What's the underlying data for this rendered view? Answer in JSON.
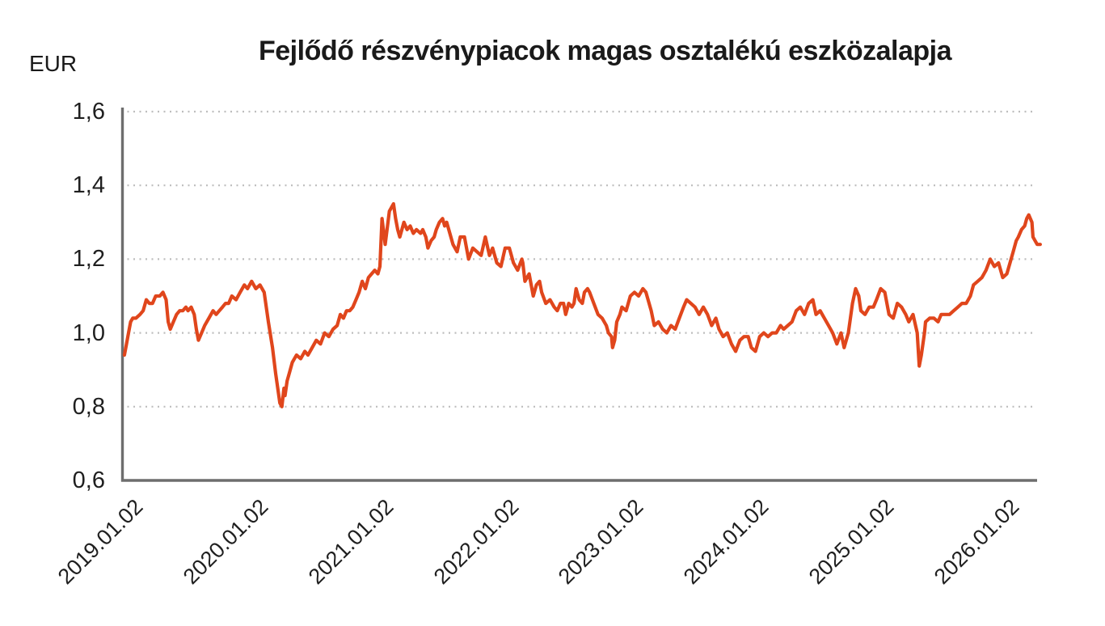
{
  "colors": {
    "series_line": "#e0461c",
    "axis": "#6e6e6e",
    "grid": "#bdbdbd",
    "text": "#1f1f1f",
    "background": "#ffffff"
  },
  "chart_data": {
    "type": "line",
    "title": "Fejlődő részvénypiacok magas osztalékú eszközalapja",
    "y_axis": {
      "label": "EUR",
      "min": 0.6,
      "max": 1.6,
      "tick_step": 0.2,
      "decimal_separator": ",",
      "ticks": [
        {
          "label": "1,6",
          "value": 1.6,
          "gridline": true
        },
        {
          "label": "1,4",
          "value": 1.4,
          "gridline": true
        },
        {
          "label": "1,2",
          "value": 1.2,
          "gridline": true
        },
        {
          "label": "1,0",
          "value": 1.0,
          "gridline": true
        },
        {
          "label": "0,8",
          "value": 0.8,
          "gridline": true
        },
        {
          "label": "0,6",
          "value": 0.6,
          "gridline": false
        }
      ]
    },
    "x_axis": {
      "tick_interval_months": 12,
      "tick_labels": [
        "2019.01.02",
        "2020.01.02",
        "2021.01.02",
        "2022.01.02",
        "2023.01.02",
        "2024.01.02",
        "2025.01.02",
        "2026.01.02"
      ]
    },
    "grid": {
      "style": "dotted",
      "orientation": "horizontal"
    },
    "legend": {
      "visible": false
    },
    "series": [
      {
        "name": "Fejlődő részvénypiacok magas osztalékú eszközalapja",
        "unit": "EUR",
        "points_month_value": [
          [
            0.3,
            0.94
          ],
          [
            0.5,
            0.97
          ],
          [
            0.7,
            1.0
          ],
          [
            0.9,
            1.03
          ],
          [
            1.1,
            1.04
          ],
          [
            1.4,
            1.04
          ],
          [
            1.8,
            1.05
          ],
          [
            2.1,
            1.06
          ],
          [
            2.4,
            1.09
          ],
          [
            2.7,
            1.08
          ],
          [
            3.0,
            1.08
          ],
          [
            3.3,
            1.1
          ],
          [
            3.7,
            1.1
          ],
          [
            4.0,
            1.11
          ],
          [
            4.3,
            1.09
          ],
          [
            4.5,
            1.03
          ],
          [
            4.7,
            1.01
          ],
          [
            5.0,
            1.03
          ],
          [
            5.3,
            1.05
          ],
          [
            5.6,
            1.06
          ],
          [
            5.9,
            1.06
          ],
          [
            6.2,
            1.07
          ],
          [
            6.4,
            1.06
          ],
          [
            6.7,
            1.07
          ],
          [
            7.0,
            1.05
          ],
          [
            7.2,
            1.01
          ],
          [
            7.4,
            0.98
          ],
          [
            7.7,
            1.0
          ],
          [
            8.0,
            1.02
          ],
          [
            8.4,
            1.04
          ],
          [
            8.8,
            1.06
          ],
          [
            9.1,
            1.05
          ],
          [
            9.4,
            1.06
          ],
          [
            9.7,
            1.07
          ],
          [
            10.0,
            1.08
          ],
          [
            10.3,
            1.08
          ],
          [
            10.6,
            1.1
          ],
          [
            11.0,
            1.09
          ],
          [
            11.4,
            1.11
          ],
          [
            11.8,
            1.13
          ],
          [
            12.1,
            1.12
          ],
          [
            12.5,
            1.14
          ],
          [
            12.9,
            1.12
          ],
          [
            13.3,
            1.13
          ],
          [
            13.7,
            1.11
          ],
          [
            14.1,
            1.03
          ],
          [
            14.5,
            0.96
          ],
          [
            14.8,
            0.89
          ],
          [
            15.2,
            0.81
          ],
          [
            15.4,
            0.8
          ],
          [
            15.6,
            0.85
          ],
          [
            15.7,
            0.83
          ],
          [
            15.9,
            0.87
          ],
          [
            16.1,
            0.89
          ],
          [
            16.4,
            0.92
          ],
          [
            16.8,
            0.94
          ],
          [
            17.2,
            0.93
          ],
          [
            17.6,
            0.95
          ],
          [
            17.9,
            0.94
          ],
          [
            18.3,
            0.96
          ],
          [
            18.7,
            0.98
          ],
          [
            19.1,
            0.97
          ],
          [
            19.5,
            1.0
          ],
          [
            19.9,
            0.99
          ],
          [
            20.3,
            1.01
          ],
          [
            20.7,
            1.02
          ],
          [
            21.0,
            1.05
          ],
          [
            21.3,
            1.04
          ],
          [
            21.6,
            1.06
          ],
          [
            21.9,
            1.06
          ],
          [
            22.2,
            1.07
          ],
          [
            22.5,
            1.09
          ],
          [
            22.8,
            1.11
          ],
          [
            23.1,
            1.14
          ],
          [
            23.4,
            1.12
          ],
          [
            23.7,
            1.15
          ],
          [
            24.0,
            1.16
          ],
          [
            24.3,
            1.17
          ],
          [
            24.6,
            1.16
          ],
          [
            24.8,
            1.18
          ],
          [
            25.0,
            1.31
          ],
          [
            25.3,
            1.24
          ],
          [
            25.7,
            1.33
          ],
          [
            26.1,
            1.35
          ],
          [
            26.3,
            1.31
          ],
          [
            26.5,
            1.28
          ],
          [
            26.7,
            1.26
          ],
          [
            27.1,
            1.3
          ],
          [
            27.4,
            1.28
          ],
          [
            27.7,
            1.29
          ],
          [
            28.0,
            1.27
          ],
          [
            28.3,
            1.28
          ],
          [
            28.7,
            1.27
          ],
          [
            28.9,
            1.28
          ],
          [
            29.2,
            1.26
          ],
          [
            29.4,
            1.23
          ],
          [
            29.7,
            1.25
          ],
          [
            30.0,
            1.26
          ],
          [
            30.2,
            1.28
          ],
          [
            30.5,
            1.3
          ],
          [
            30.8,
            1.31
          ],
          [
            31.0,
            1.29
          ],
          [
            31.2,
            1.3
          ],
          [
            31.5,
            1.27
          ],
          [
            31.8,
            1.24
          ],
          [
            32.2,
            1.22
          ],
          [
            32.5,
            1.26
          ],
          [
            32.9,
            1.26
          ],
          [
            33.3,
            1.2
          ],
          [
            33.7,
            1.23
          ],
          [
            34.1,
            1.22
          ],
          [
            34.5,
            1.21
          ],
          [
            34.9,
            1.26
          ],
          [
            35.3,
            1.21
          ],
          [
            35.6,
            1.23
          ],
          [
            36.0,
            1.19
          ],
          [
            36.4,
            1.18
          ],
          [
            36.8,
            1.23
          ],
          [
            37.2,
            1.23
          ],
          [
            37.6,
            1.19
          ],
          [
            38.0,
            1.17
          ],
          [
            38.4,
            1.2
          ],
          [
            38.5,
            1.19
          ],
          [
            38.7,
            1.14
          ],
          [
            39.1,
            1.16
          ],
          [
            39.5,
            1.1
          ],
          [
            39.8,
            1.13
          ],
          [
            40.1,
            1.14
          ],
          [
            40.3,
            1.11
          ],
          [
            40.7,
            1.08
          ],
          [
            41.1,
            1.09
          ],
          [
            41.5,
            1.07
          ],
          [
            41.8,
            1.06
          ],
          [
            42.1,
            1.08
          ],
          [
            42.4,
            1.08
          ],
          [
            42.6,
            1.05
          ],
          [
            42.9,
            1.08
          ],
          [
            43.2,
            1.07
          ],
          [
            43.4,
            1.08
          ],
          [
            43.6,
            1.12
          ],
          [
            43.9,
            1.09
          ],
          [
            44.2,
            1.08
          ],
          [
            44.4,
            1.11
          ],
          [
            44.7,
            1.12
          ],
          [
            44.9,
            1.11
          ],
          [
            45.3,
            1.08
          ],
          [
            45.7,
            1.05
          ],
          [
            46.1,
            1.04
          ],
          [
            46.5,
            1.02
          ],
          [
            46.7,
            1.0
          ],
          [
            47.0,
            0.99
          ],
          [
            47.1,
            0.96
          ],
          [
            47.3,
            0.98
          ],
          [
            47.5,
            1.03
          ],
          [
            47.8,
            1.05
          ],
          [
            48.0,
            1.07
          ],
          [
            48.4,
            1.06
          ],
          [
            48.8,
            1.1
          ],
          [
            49.2,
            1.11
          ],
          [
            49.6,
            1.1
          ],
          [
            50.0,
            1.12
          ],
          [
            50.3,
            1.11
          ],
          [
            50.8,
            1.06
          ],
          [
            51.1,
            1.02
          ],
          [
            51.5,
            1.03
          ],
          [
            51.9,
            1.01
          ],
          [
            52.3,
            1.0
          ],
          [
            52.7,
            1.02
          ],
          [
            53.1,
            1.01
          ],
          [
            53.5,
            1.04
          ],
          [
            53.9,
            1.07
          ],
          [
            54.2,
            1.09
          ],
          [
            54.6,
            1.08
          ],
          [
            55.0,
            1.07
          ],
          [
            55.4,
            1.05
          ],
          [
            55.8,
            1.07
          ],
          [
            56.2,
            1.05
          ],
          [
            56.6,
            1.02
          ],
          [
            57.0,
            1.04
          ],
          [
            57.3,
            1.01
          ],
          [
            57.7,
            0.99
          ],
          [
            58.1,
            1.0
          ],
          [
            58.5,
            0.97
          ],
          [
            58.9,
            0.95
          ],
          [
            59.3,
            0.98
          ],
          [
            59.7,
            0.99
          ],
          [
            60.1,
            0.99
          ],
          [
            60.4,
            0.96
          ],
          [
            60.8,
            0.95
          ],
          [
            61.2,
            0.99
          ],
          [
            61.6,
            1.0
          ],
          [
            62.0,
            0.99
          ],
          [
            62.4,
            1.0
          ],
          [
            62.8,
            1.0
          ],
          [
            63.2,
            1.02
          ],
          [
            63.5,
            1.01
          ],
          [
            63.9,
            1.02
          ],
          [
            64.3,
            1.03
          ],
          [
            64.7,
            1.06
          ],
          [
            65.1,
            1.07
          ],
          [
            65.5,
            1.05
          ],
          [
            65.9,
            1.08
          ],
          [
            66.3,
            1.09
          ],
          [
            66.6,
            1.05
          ],
          [
            67.0,
            1.06
          ],
          [
            67.4,
            1.04
          ],
          [
            67.8,
            1.02
          ],
          [
            68.2,
            1.0
          ],
          [
            68.6,
            0.97
          ],
          [
            69.0,
            1.0
          ],
          [
            69.3,
            0.96
          ],
          [
            69.7,
            1.0
          ],
          [
            70.1,
            1.08
          ],
          [
            70.4,
            1.12
          ],
          [
            70.7,
            1.1
          ],
          [
            70.9,
            1.06
          ],
          [
            71.3,
            1.05
          ],
          [
            71.7,
            1.07
          ],
          [
            72.1,
            1.07
          ],
          [
            72.4,
            1.09
          ],
          [
            72.8,
            1.12
          ],
          [
            73.2,
            1.11
          ],
          [
            73.6,
            1.05
          ],
          [
            74.0,
            1.04
          ],
          [
            74.4,
            1.08
          ],
          [
            74.8,
            1.07
          ],
          [
            75.2,
            1.05
          ],
          [
            75.5,
            1.03
          ],
          [
            75.9,
            1.05
          ],
          [
            76.3,
            1.0
          ],
          [
            76.5,
            0.91
          ],
          [
            76.7,
            0.94
          ],
          [
            77.0,
            1.0
          ],
          [
            77.1,
            1.03
          ],
          [
            77.5,
            1.04
          ],
          [
            77.9,
            1.04
          ],
          [
            78.3,
            1.03
          ],
          [
            78.6,
            1.05
          ],
          [
            79.0,
            1.05
          ],
          [
            79.4,
            1.05
          ],
          [
            79.8,
            1.06
          ],
          [
            80.2,
            1.07
          ],
          [
            80.6,
            1.08
          ],
          [
            81.0,
            1.08
          ],
          [
            81.4,
            1.1
          ],
          [
            81.7,
            1.13
          ],
          [
            82.1,
            1.14
          ],
          [
            82.5,
            1.15
          ],
          [
            82.9,
            1.17
          ],
          [
            83.3,
            1.2
          ],
          [
            83.7,
            1.18
          ],
          [
            84.1,
            1.19
          ],
          [
            84.5,
            1.15
          ],
          [
            84.9,
            1.16
          ],
          [
            85.2,
            1.19
          ],
          [
            85.5,
            1.22
          ],
          [
            85.8,
            1.25
          ],
          [
            86.0,
            1.26
          ],
          [
            86.3,
            1.28
          ],
          [
            86.6,
            1.29
          ],
          [
            86.8,
            1.31
          ],
          [
            87.0,
            1.32
          ],
          [
            87.3,
            1.3
          ],
          [
            87.4,
            1.26
          ],
          [
            87.6,
            1.25
          ],
          [
            87.8,
            1.24
          ],
          [
            88.1,
            1.24
          ]
        ]
      }
    ]
  }
}
